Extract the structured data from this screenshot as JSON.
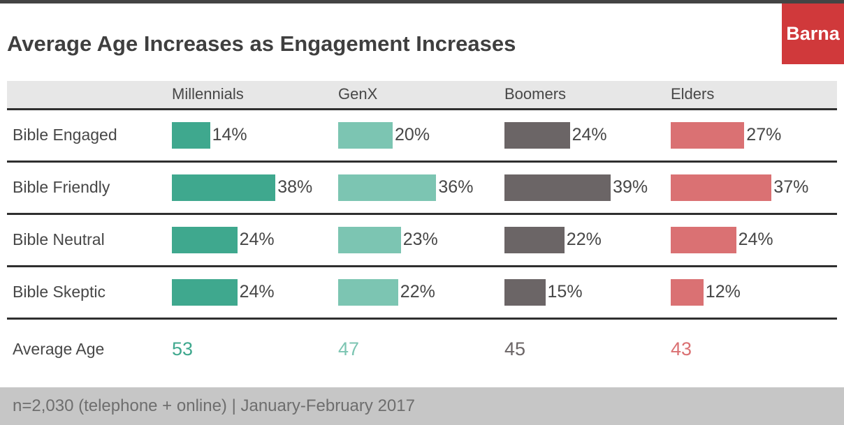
{
  "brand": {
    "logo_text": "Barna",
    "logo_bg": "#d0393b",
    "logo_text_color": "#ffffff"
  },
  "title": "Average Age Increases as Engagement Increases",
  "footnote": "n=2,030 (telephone + online) | January-February 2017",
  "chart_data": {
    "type": "bar",
    "orientation": "horizontal",
    "title": "Average Age Increases as Engagement Increases",
    "columns": [
      "Millennials",
      "GenX",
      "Boomers",
      "Elders"
    ],
    "column_colors": [
      "#3fa88e",
      "#7cc5b2",
      "#6b6566",
      "#da7173"
    ],
    "value_suffix": "%",
    "rows": [
      {
        "label": "Bible Engaged",
        "values": [
          14,
          20,
          24,
          27
        ]
      },
      {
        "label": "Bible Friendly",
        "values": [
          38,
          36,
          39,
          37
        ]
      },
      {
        "label": "Bible Neutral",
        "values": [
          24,
          23,
          22,
          24
        ]
      },
      {
        "label": "Bible Skeptic",
        "values": [
          24,
          22,
          15,
          12
        ]
      }
    ],
    "summary": {
      "label": "Average Age",
      "values": [
        53,
        47,
        45,
        43
      ]
    },
    "xlim": [
      0,
      60
    ],
    "grid": false,
    "legend": "none"
  }
}
